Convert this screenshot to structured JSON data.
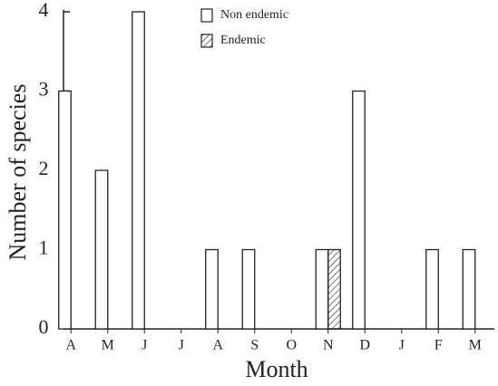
{
  "chart_data": {
    "type": "bar",
    "x_label": "Month",
    "y_label": "Number of species",
    "categories": [
      "A",
      "M",
      "J",
      "J",
      "A",
      "S",
      "O",
      "N",
      "D",
      "J",
      "F",
      "M"
    ],
    "series": [
      {
        "name": "Non endemic",
        "color": "#ffffff",
        "hatch": false,
        "values": [
          3,
          2,
          4,
          0,
          1,
          1,
          0,
          1,
          3,
          0,
          1,
          1
        ]
      },
      {
        "name": "Endemic",
        "color": "#ffffff",
        "hatch": true,
        "values": [
          0,
          0,
          0,
          0,
          0,
          0,
          0,
          1,
          0,
          0,
          0,
          0
        ]
      }
    ],
    "ylim": [
      0,
      4
    ],
    "yticks": [
      0,
      1,
      2,
      3,
      4
    ]
  }
}
